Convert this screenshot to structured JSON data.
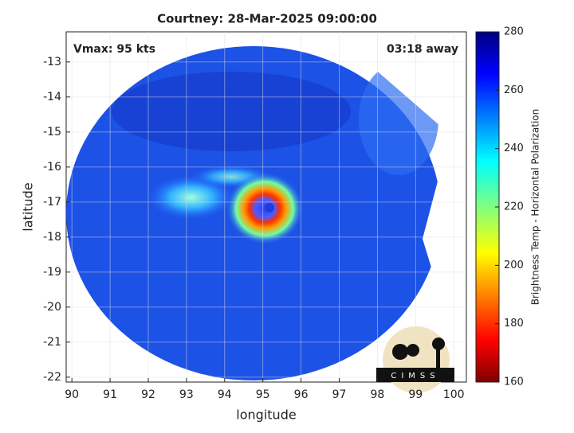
{
  "chart_data": {
    "type": "map",
    "title": "Courtney: 28-Mar-2025 09:00:00",
    "annotations": [
      "Vmax: 95 kts",
      "03:18 away"
    ],
    "x_label": "longitude",
    "y_label": "latitude",
    "xlim": [
      89.85,
      100.33
    ],
    "xticks": [
      90,
      91,
      92,
      93,
      94,
      95,
      96,
      97,
      98,
      99,
      100
    ],
    "ylim": [
      -22.14,
      -12.14
    ],
    "yticks": [
      -22,
      -21,
      -20,
      -19,
      -18,
      -17,
      -16,
      -15,
      -14,
      -13
    ],
    "grid": true,
    "colorbar": {
      "label": "Brightness Temp - Horizontal Polarization",
      "colormap": "jet",
      "lim": [
        160,
        280
      ],
      "ticks": [
        160,
        180,
        200,
        220,
        240,
        260,
        280
      ]
    },
    "logo": "CIMSS"
  }
}
